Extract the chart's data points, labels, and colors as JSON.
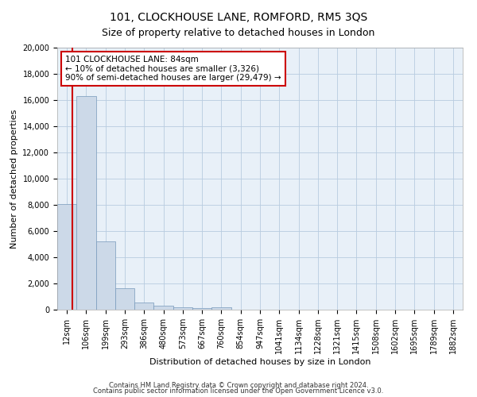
{
  "title": "101, CLOCKHOUSE LANE, ROMFORD, RM5 3QS",
  "subtitle": "Size of property relative to detached houses in London",
  "xlabel": "Distribution of detached houses by size in London",
  "ylabel": "Number of detached properties",
  "categories": [
    "12sqm",
    "106sqm",
    "199sqm",
    "293sqm",
    "386sqm",
    "480sqm",
    "573sqm",
    "667sqm",
    "760sqm",
    "854sqm",
    "947sqm",
    "1041sqm",
    "1134sqm",
    "1228sqm",
    "1321sqm",
    "1415sqm",
    "1508sqm",
    "1602sqm",
    "1695sqm",
    "1789sqm",
    "1882sqm"
  ],
  "values": [
    8050,
    16300,
    5200,
    1650,
    550,
    300,
    180,
    130,
    200,
    0,
    0,
    0,
    0,
    0,
    0,
    0,
    0,
    0,
    0,
    0,
    0
  ],
  "bar_color": "#ccd9e8",
  "bar_edge_color": "#7799bb",
  "highlight_color": "#cc0000",
  "annotation_text": "101 CLOCKHOUSE LANE: 84sqm\n← 10% of detached houses are smaller (3,326)\n90% of semi-detached houses are larger (29,479) →",
  "annotation_box_color": "#ffffff",
  "annotation_box_edge": "#cc0000",
  "ylim": [
    0,
    20000
  ],
  "yticks": [
    0,
    2000,
    4000,
    6000,
    8000,
    10000,
    12000,
    14000,
    16000,
    18000,
    20000
  ],
  "footer1": "Contains HM Land Registry data © Crown copyright and database right 2024.",
  "footer2": "Contains public sector information licensed under the Open Government Licence v3.0.",
  "background_color": "#ffffff",
  "plot_bg_color": "#e8f0f8",
  "grid_color": "#b8cce0",
  "title_fontsize": 10,
  "subtitle_fontsize": 9,
  "axis_label_fontsize": 8,
  "tick_fontsize": 7,
  "footer_fontsize": 6
}
